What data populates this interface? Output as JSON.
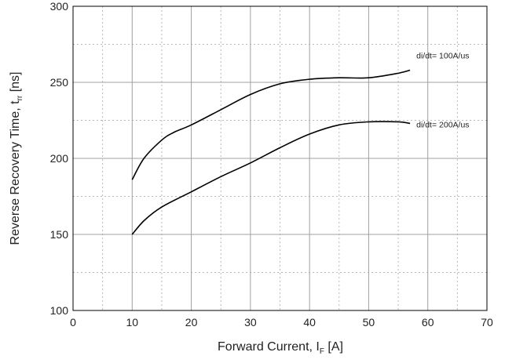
{
  "chart_data": {
    "type": "line",
    "title": "",
    "xlabel": "Forward Current, I",
    "xlabel_sub": "F",
    "xlabel_unit": " [A]",
    "ylabel": "Reverse Recovery Time, t",
    "ylabel_sub": "rr",
    "ylabel_unit": " [ns]",
    "xlim": [
      0,
      70
    ],
    "ylim": [
      100,
      300
    ],
    "x_ticks": [
      0,
      10,
      20,
      30,
      40,
      50,
      60,
      70
    ],
    "y_ticks": [
      100,
      150,
      200,
      250,
      300
    ],
    "x_minor_grid": [
      5,
      15,
      25,
      35,
      45,
      55,
      65
    ],
    "y_minor_grid": [
      125,
      175,
      225,
      275
    ],
    "grid": true,
    "legend": "inline labels at line ends",
    "series": [
      {
        "name": "di/dt= 100A/us",
        "x": [
          10,
          12,
          15,
          17,
          20,
          25,
          30,
          35,
          40,
          45,
          50,
          55,
          57
        ],
        "values": [
          186,
          200,
          212,
          217,
          222,
          232,
          242,
          249,
          252,
          253,
          253,
          256,
          258
        ]
      },
      {
        "name": "di/dt= 200A/us",
        "x": [
          10,
          12,
          15,
          20,
          25,
          30,
          35,
          40,
          45,
          50,
          55,
          57
        ],
        "values": [
          150,
          159,
          168,
          178,
          188,
          197,
          207,
          216,
          222,
          224,
          224,
          223
        ]
      }
    ],
    "colors": {
      "line": "#000000",
      "major_grid": "#a0a0a0",
      "minor_grid": "#b8b8b8",
      "frame": "#000000"
    }
  }
}
